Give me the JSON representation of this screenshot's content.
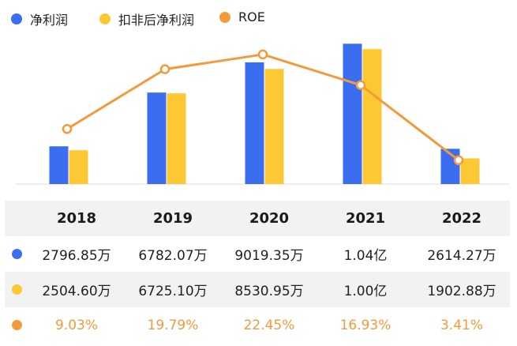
{
  "colors": {
    "net_profit": "#3a6df0",
    "deducted_profit": "#fcc935",
    "roe": "#f39a3c"
  },
  "legend": [
    {
      "label": "净利润",
      "color": "#3a6df0"
    },
    {
      "label": "扣非后净利润",
      "color": "#fcc935"
    },
    {
      "label": "ROE",
      "color": "#f39a3c"
    }
  ],
  "chart_data": {
    "type": "bar",
    "categories": [
      "2018",
      "2019",
      "2020",
      "2021",
      "2022"
    ],
    "series": [
      {
        "name": "净利润",
        "type": "bar",
        "values": [
          2796.85,
          6782.07,
          9019.35,
          10400,
          2614.27
        ]
      },
      {
        "name": "扣非后净利润",
        "type": "bar",
        "values": [
          2504.6,
          6725.1,
          8530.95,
          10000,
          1902.88
        ]
      },
      {
        "name": "ROE",
        "type": "line",
        "values": [
          9.03,
          19.79,
          22.45,
          16.93,
          3.41
        ]
      }
    ],
    "legend_position": "top-left",
    "grid": false
  },
  "table": {
    "headers": [
      "2018",
      "2019",
      "2020",
      "2021",
      "2022"
    ],
    "rows": [
      {
        "key": "net-profit",
        "color": "#3a6df0",
        "values": [
          "2796.85万",
          "6782.07万",
          "9019.35万",
          "1.04亿",
          "2614.27万"
        ]
      },
      {
        "key": "deducted-profit",
        "color": "#fcc935",
        "values": [
          "2504.60万",
          "6725.10万",
          "8530.95万",
          "1.00亿",
          "1902.88万"
        ]
      },
      {
        "key": "roe",
        "color": "#f39a3c",
        "values": [
          "9.03%",
          "19.79%",
          "22.45%",
          "16.93%",
          "3.41%"
        ]
      }
    ]
  }
}
